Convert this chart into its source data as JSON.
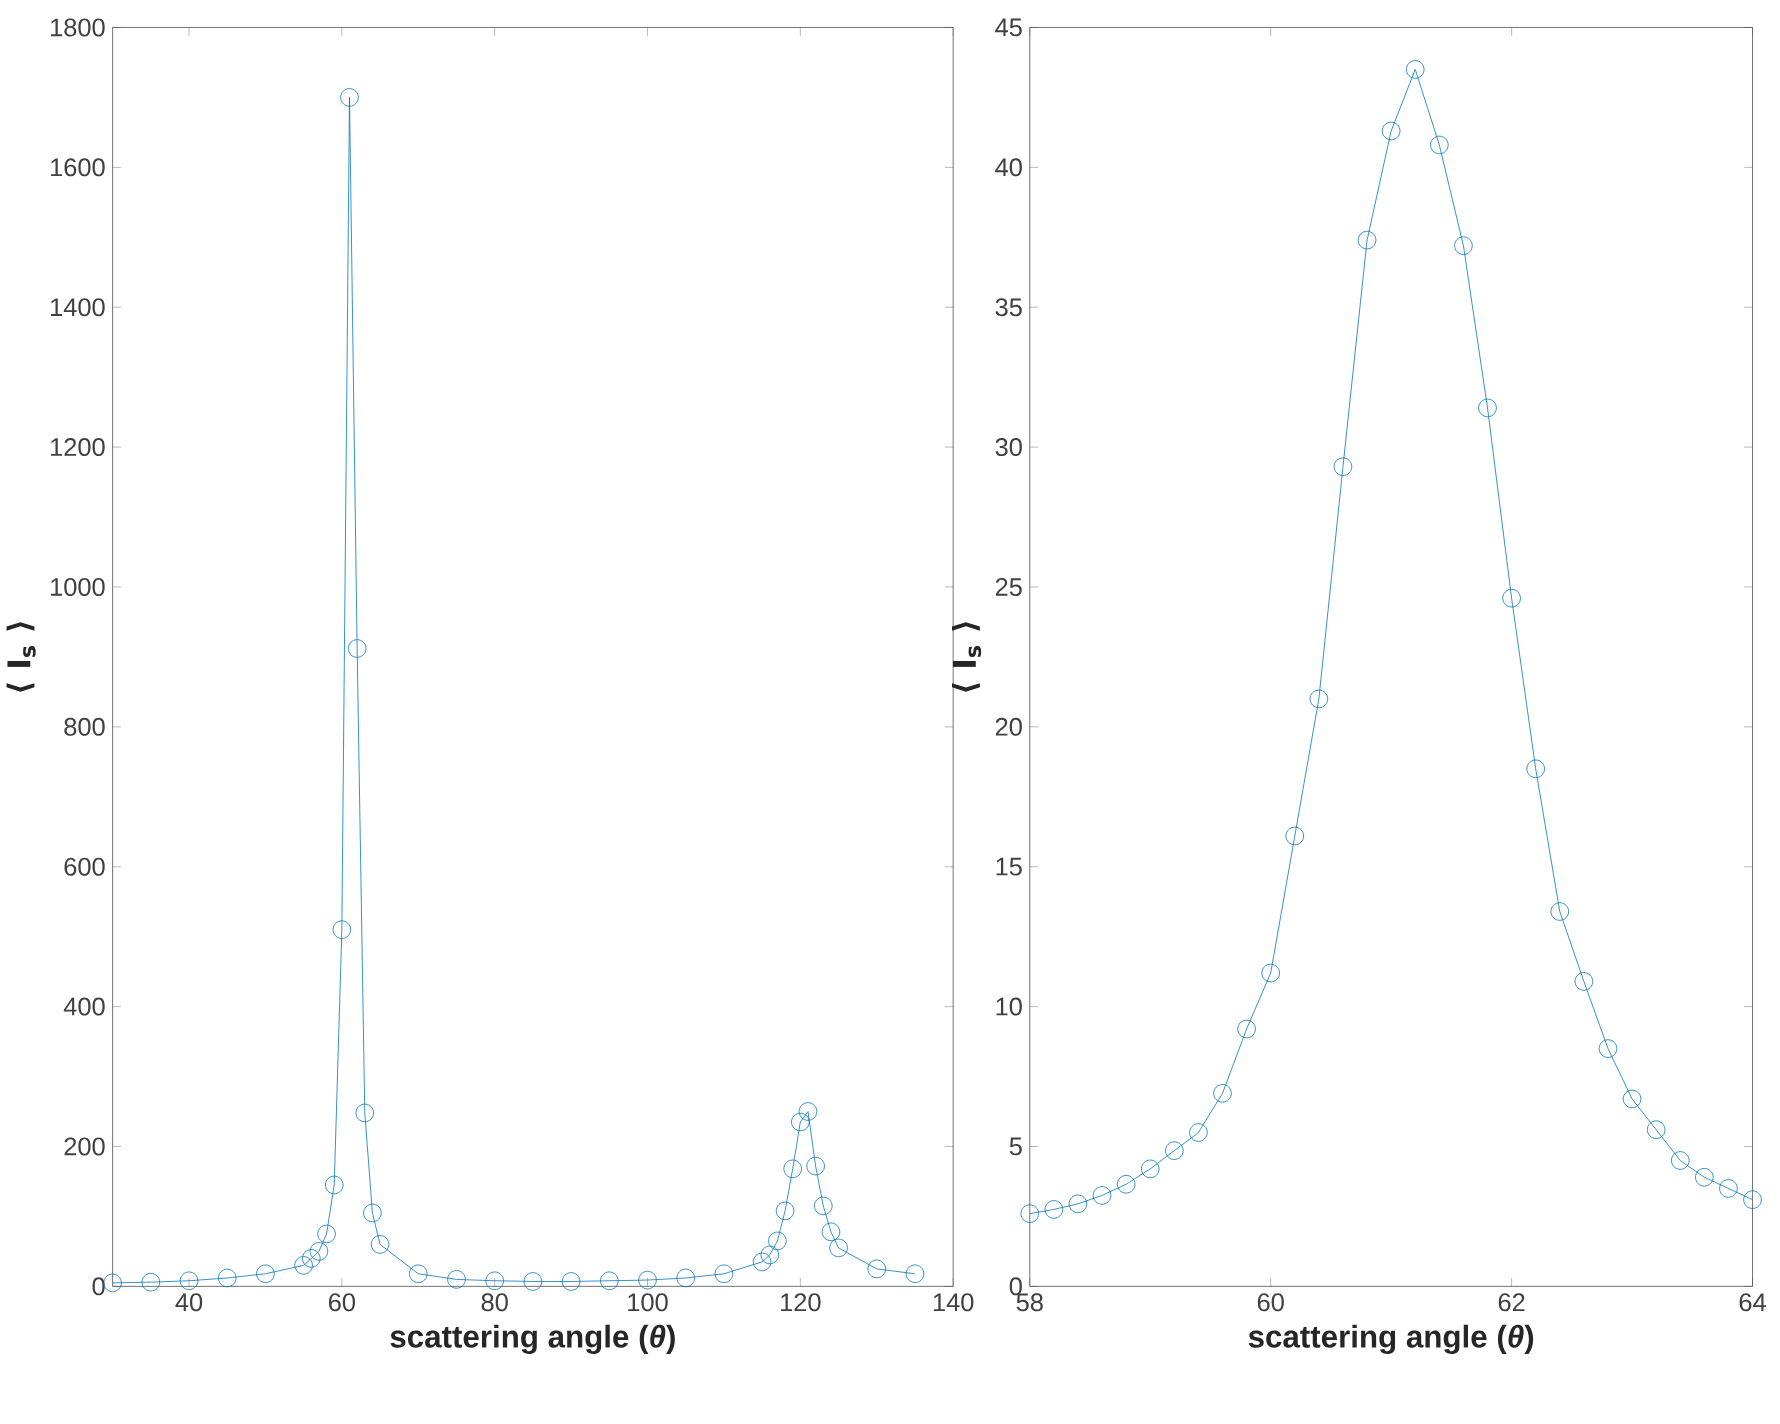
{
  "chart_data": [
    {
      "type": "line",
      "xlabel": "scattering angle (*θ*)",
      "ylabel": "⟨ I$_{s}$ ⟩",
      "marker": "circle",
      "line_style": "solid",
      "grid": false,
      "x": [
        30,
        35,
        40,
        45,
        50,
        55,
        56,
        57,
        58,
        59,
        60,
        61,
        62,
        63,
        64,
        65,
        70,
        75,
        80,
        85,
        90,
        95,
        100,
        105,
        110,
        115,
        116,
        117,
        118,
        119,
        120,
        121,
        122,
        123,
        124,
        125,
        130,
        135
      ],
      "series": [
        {
          "color": "#0072bd",
          "values": [
            5,
            6,
            8,
            12,
            18,
            30,
            40,
            50,
            75,
            145,
            510,
            1700,
            912,
            248,
            105,
            60,
            18,
            10,
            8,
            7,
            7,
            8,
            9,
            12,
            18,
            35,
            45,
            65,
            108,
            168,
            235,
            250,
            172,
            115,
            78,
            55,
            25,
            18
          ]
        }
      ],
      "xlim": [
        30,
        140
      ],
      "xticks": [
        40,
        60,
        80,
        100,
        120,
        140
      ],
      "ylim": [
        0,
        1800
      ],
      "yticks": [
        0,
        200,
        400,
        600,
        800,
        1000,
        1200,
        1400,
        1600,
        1800
      ]
    },
    {
      "type": "line",
      "xlabel": "scattering angle (*θ*)",
      "ylabel": "⟨ I$_{s}$ ⟩",
      "marker": "circle",
      "line_style": "solid",
      "grid": false,
      "x": [
        58,
        58.2,
        58.4,
        58.6,
        58.8,
        59,
        59.2,
        59.4,
        59.6,
        59.8,
        60,
        60.2,
        60.4,
        60.6,
        60.8,
        61,
        61.2,
        61.4,
        61.6,
        61.8,
        62,
        62.2,
        62.4,
        62.6,
        62.8,
        63,
        63.2,
        63.4,
        63.6,
        63.8,
        64
      ],
      "series": [
        {
          "color": "#0072bd",
          "values": [
            2.6,
            2.75,
            2.95,
            3.25,
            3.65,
            4.2,
            4.85,
            5.5,
            6.9,
            9.2,
            11.2,
            16.1,
            21.0,
            29.3,
            37.4,
            41.3,
            43.5,
            40.8,
            37.2,
            31.4,
            24.6,
            18.5,
            13.4,
            10.9,
            8.5,
            6.7,
            5.6,
            4.5,
            3.9,
            3.5,
            3.1
          ]
        }
      ],
      "xlim": [
        58,
        64
      ],
      "xticks": [
        58,
        60,
        62,
        64
      ],
      "ylim": [
        0,
        45
      ],
      "yticks": [
        0,
        5,
        10,
        15,
        20,
        25,
        30,
        35,
        40,
        45
      ]
    }
  ]
}
